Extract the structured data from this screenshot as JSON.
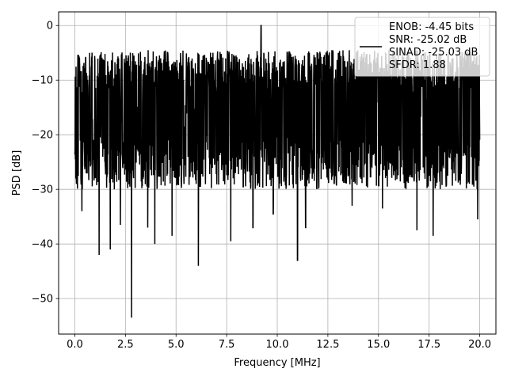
{
  "chart_data": {
    "type": "line",
    "title": "",
    "xlabel": "Frequency [MHz]",
    "ylabel": "PSD [dB]",
    "xlim": [
      -0.8,
      20.8
    ],
    "ylim": [
      -56.5,
      2.5
    ],
    "xticks": [
      0.0,
      2.5,
      5.0,
      7.5,
      10.0,
      12.5,
      15.0,
      17.5,
      20.0
    ],
    "xtick_labels": [
      "0.0",
      "2.5",
      "5.0",
      "7.5",
      "10.0",
      "12.5",
      "15.0",
      "17.5",
      "20.0"
    ],
    "yticks": [
      0,
      -10,
      -20,
      -30,
      -40,
      -50
    ],
    "ytick_labels": [
      "0",
      "−10",
      "−20",
      "−30",
      "−40",
      "−50"
    ],
    "grid": true,
    "legend_position": "top-right",
    "legend_lines": [
      "ENOB: -4.45 bits",
      "SNR: -25.02 dB",
      "SINAD: -25.03 dB",
      "SFDR: 1.88"
    ],
    "series_color": "#000000",
    "series": [
      {
        "name": "ENOB: -4.45 bits",
        "x_start": 0.0,
        "x_end": 20.0,
        "num_points": 2000,
        "envelope_top": -4.5,
        "envelope_bottom": -30.0,
        "typical_center": -16.0,
        "global_max": {
          "x": 9.2,
          "y": 0.0
        },
        "notable_minima": [
          {
            "x": 0.35,
            "y": -34.0
          },
          {
            "x": 1.2,
            "y": -42.0
          },
          {
            "x": 1.75,
            "y": -41.0
          },
          {
            "x": 2.25,
            "y": -36.5
          },
          {
            "x": 2.8,
            "y": -53.5
          },
          {
            "x": 3.6,
            "y": -37.0
          },
          {
            "x": 3.95,
            "y": -40.0
          },
          {
            "x": 4.8,
            "y": -38.5
          },
          {
            "x": 6.1,
            "y": -44.0
          },
          {
            "x": 7.7,
            "y": -39.5
          },
          {
            "x": 8.8,
            "y": -37.0
          },
          {
            "x": 9.8,
            "y": -34.5
          },
          {
            "x": 11.0,
            "y": -43.0
          },
          {
            "x": 11.4,
            "y": -37.0
          },
          {
            "x": 13.7,
            "y": -33.0
          },
          {
            "x": 15.2,
            "y": -33.5
          },
          {
            "x": 16.9,
            "y": -37.5
          },
          {
            "x": 17.7,
            "y": -38.5
          },
          {
            "x": 19.9,
            "y": -35.5
          }
        ]
      }
    ]
  }
}
